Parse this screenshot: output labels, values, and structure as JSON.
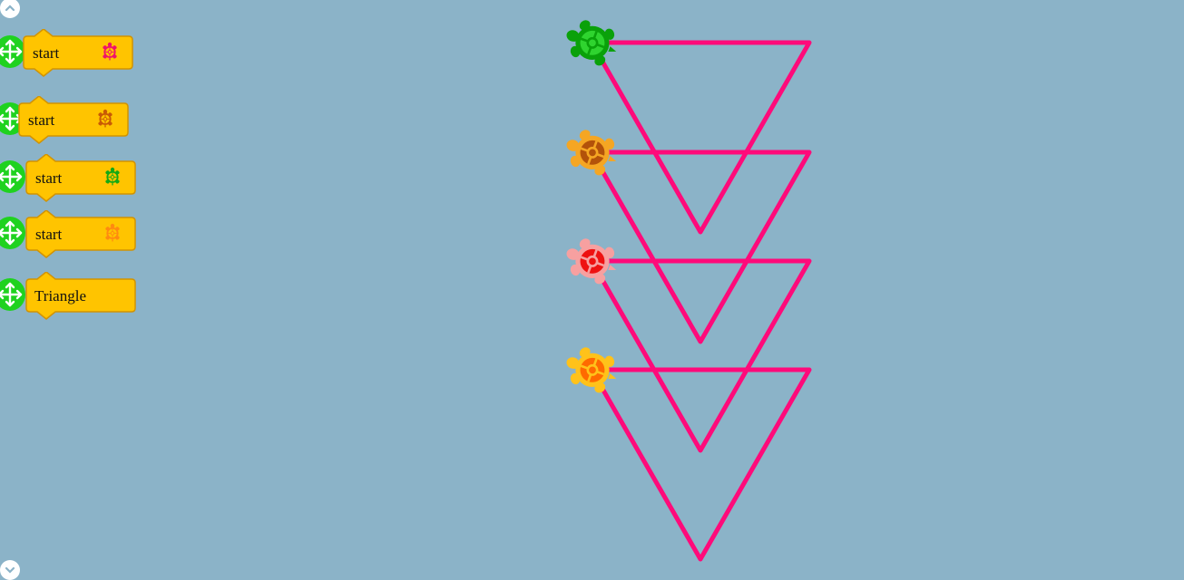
{
  "palette": {
    "start_blocks": [
      {
        "label": "start",
        "turtle_color": "#f0136a",
        "turtle_icon": "turtle-icon"
      },
      {
        "label": "start",
        "turtle_color": "#c85a05",
        "turtle_icon": "turtle-icon"
      },
      {
        "label": "start",
        "turtle_color": "#14a914",
        "turtle_icon": "turtle-icon"
      },
      {
        "label": "start",
        "turtle_color": "#ff8a10",
        "turtle_icon": "turtle-icon"
      }
    ],
    "action_blocks": [
      {
        "label": "Triangle"
      }
    ]
  },
  "canvas": {
    "line_color": "#ff0a7a",
    "turtles": [
      {
        "name": "green-turtle",
        "color": "#0aa10a",
        "shell": "#2fd42f"
      },
      {
        "name": "brown-turtle",
        "color": "#f5a623",
        "shell": "#b3520a"
      },
      {
        "name": "red-turtle",
        "color": "#f7a0a0",
        "shell": "#ee1111"
      },
      {
        "name": "orange-turtle",
        "color": "#ffc21a",
        "shell": "#ff6a00"
      }
    ]
  }
}
